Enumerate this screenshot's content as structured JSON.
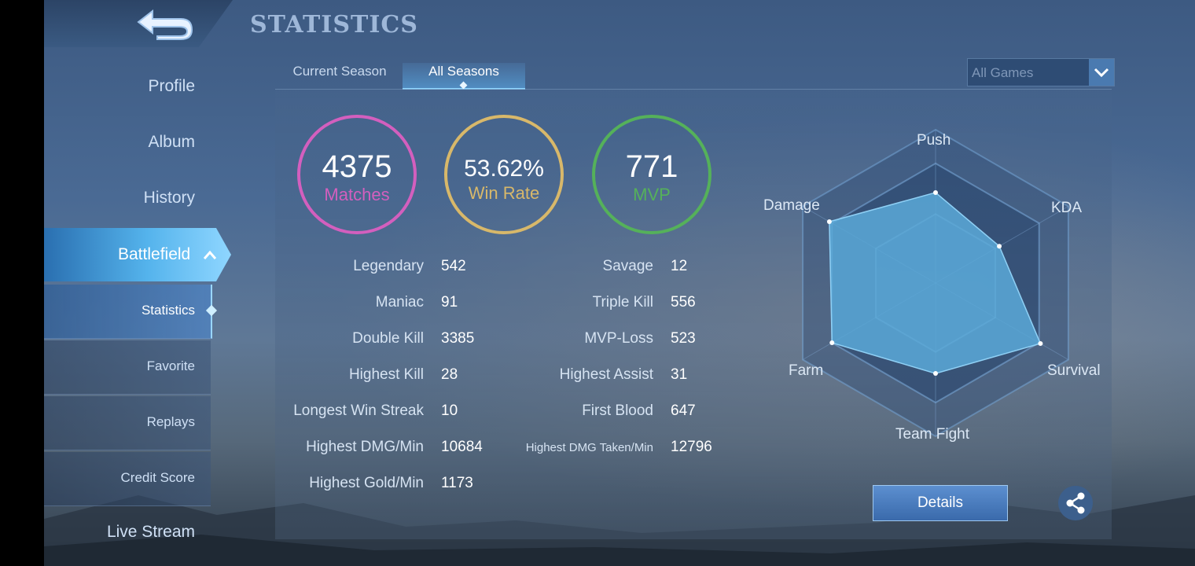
{
  "header": {
    "title": "STATISTICS"
  },
  "sidebar": {
    "items": [
      {
        "label": "Profile"
      },
      {
        "label": "Album"
      },
      {
        "label": "History"
      },
      {
        "label": "Battlefield"
      },
      {
        "label": "Live Stream"
      }
    ],
    "subitems": [
      {
        "label": "Statistics"
      },
      {
        "label": "Favorite"
      },
      {
        "label": "Replays"
      },
      {
        "label": "Credit Score"
      }
    ]
  },
  "tabs": [
    {
      "label": "Current Season"
    },
    {
      "label": "All Seasons"
    }
  ],
  "filter": {
    "value": "All Games"
  },
  "summary": {
    "matches": {
      "value": "4375",
      "label": "Matches",
      "color": "#d35fbe"
    },
    "win_rate": {
      "value": "53.62%",
      "label": "Win Rate",
      "color": "#d8b86a"
    },
    "mvp": {
      "value": "771",
      "label": "MVP",
      "color": "#55b15a"
    }
  },
  "stats_left": [
    {
      "label": "Legendary",
      "value": "542"
    },
    {
      "label": "Maniac",
      "value": "91"
    },
    {
      "label": "Double Kill",
      "value": "3385"
    },
    {
      "label": "Highest Kill",
      "value": "28"
    },
    {
      "label": "Longest Win Streak",
      "value": "10"
    },
    {
      "label": "Highest DMG/Min",
      "value": "10684"
    },
    {
      "label": "Highest Gold/Min",
      "value": "1173"
    }
  ],
  "stats_right": [
    {
      "label": "Savage",
      "value": "12"
    },
    {
      "label": "Triple Kill",
      "value": "556"
    },
    {
      "label": "MVP-Loss",
      "value": "523"
    },
    {
      "label": "Highest Assist",
      "value": "31"
    },
    {
      "label": "First Blood",
      "value": "647"
    },
    {
      "label": "Highest DMG Taken/Min",
      "value": "12796"
    }
  ],
  "radar": {
    "axes": [
      "Push",
      "KDA",
      "Survival",
      "Team Fight",
      "Farm",
      "Damage"
    ],
    "values": [
      0.59,
      0.48,
      0.79,
      0.59,
      0.78,
      0.8
    ],
    "fill_color": "#5aa9d8"
  },
  "actions": {
    "details_label": "Details"
  },
  "icons": {
    "back": "back-arrow-icon",
    "share": "share-icon",
    "dropdown": "chevron-down-icon"
  }
}
